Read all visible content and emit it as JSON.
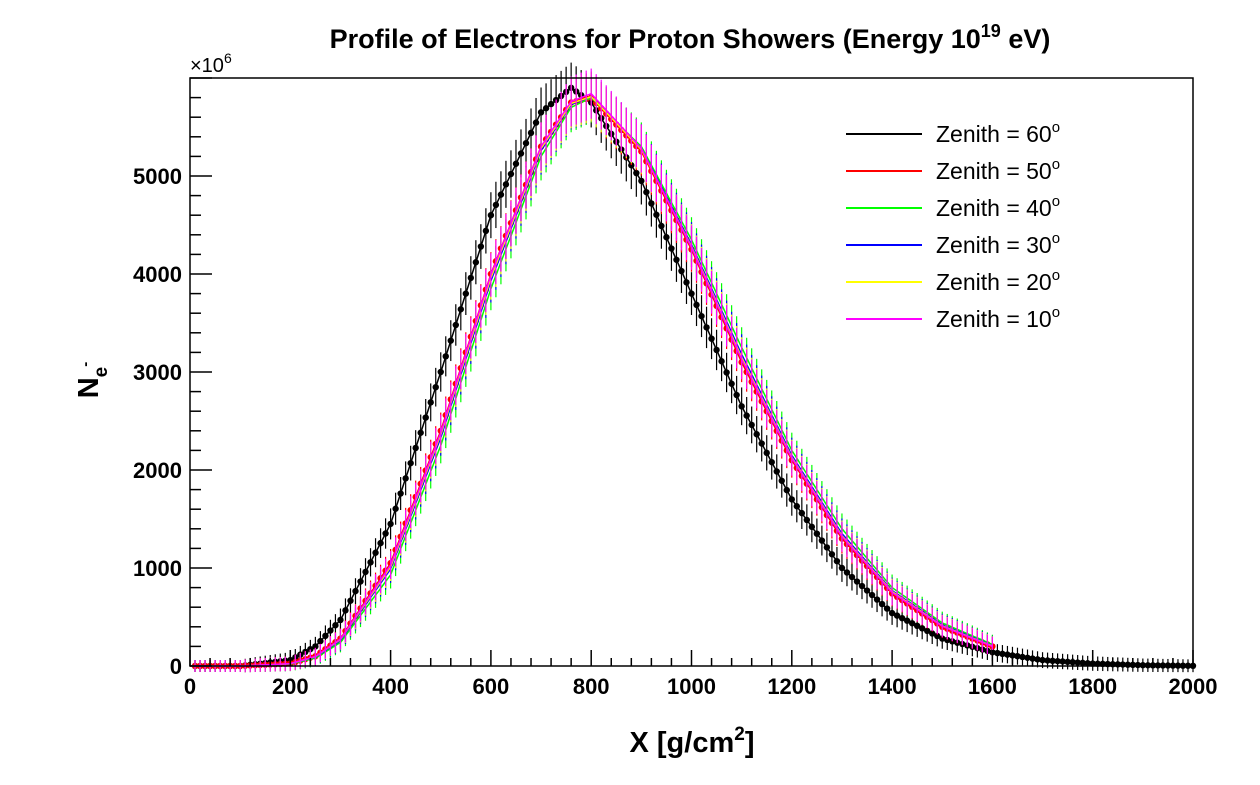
{
  "chart_data": {
    "type": "line",
    "title": "Profile of Electrons for Proton Showers (Energy 10",
    "title_exp": "19",
    "title_suffix": " eV)",
    "xlabel": "X [g/cm",
    "xlabel_exp": "2",
    "xlabel_suffix": "]",
    "ylabel": "N",
    "ylabel_sub": "e",
    "ylabel_sup": "-",
    "y_multiplier": "×10",
    "y_multiplier_exp": "6",
    "xlim": [
      0,
      2000
    ],
    "ylim": [
      0,
      6000
    ],
    "x_ticks": [
      "0",
      "200",
      "400",
      "600",
      "800",
      "1000",
      "1200",
      "1400",
      "1600",
      "1800",
      "2000"
    ],
    "y_ticks": [
      "0",
      "1000",
      "2000",
      "3000",
      "4000",
      "5000"
    ],
    "legend_position": "top-right",
    "x": [
      0,
      100,
      200,
      250,
      300,
      400,
      500,
      600,
      700,
      760,
      800,
      900,
      1000,
      1100,
      1200,
      1300,
      1400,
      1500,
      1600,
      1700,
      1800,
      1900,
      2000
    ],
    "series": [
      {
        "name": "Zenith = 60",
        "name_sup": "o",
        "color": "#000000",
        "markers": true,
        "x_max": 2000,
        "values": [
          0,
          0,
          60,
          200,
          470,
          1450,
          3000,
          4600,
          5650,
          5900,
          5750,
          4950,
          3800,
          2650,
          1700,
          1000,
          540,
          280,
          140,
          60,
          25,
          8,
          2
        ]
      },
      {
        "name": "Zenith = 50",
        "name_sup": "o",
        "color": "#ff0000",
        "markers": true,
        "x_max": 1600,
        "values": [
          0,
          0,
          25,
          100,
          280,
          1050,
          2400,
          4000,
          5300,
          5750,
          5800,
          5250,
          4250,
          3100,
          2100,
          1300,
          740,
          400,
          200,
          0,
          0,
          0,
          0
        ]
      },
      {
        "name": "Zenith = 40",
        "name_sup": "o",
        "color": "#00ff00",
        "markers": false,
        "x_max": 1600,
        "values": [
          0,
          0,
          20,
          80,
          240,
          930,
          2250,
          3850,
          5200,
          5700,
          5800,
          5300,
          4350,
          3250,
          2200,
          1400,
          800,
          440,
          220,
          0,
          0,
          0,
          0
        ]
      },
      {
        "name": "Zenith = 30",
        "name_sup": "o",
        "color": "#0000ff",
        "markers": false,
        "x_max": 1600,
        "values": [
          0,
          0,
          22,
          90,
          260,
          990,
          2330,
          3930,
          5260,
          5730,
          5810,
          5280,
          4300,
          3180,
          2150,
          1350,
          770,
          420,
          210,
          0,
          0,
          0,
          0
        ]
      },
      {
        "name": "Zenith = 20",
        "name_sup": "o",
        "color": "#ffff00",
        "markers": false,
        "x_max": 1600,
        "values": [
          0,
          0,
          23,
          95,
          270,
          1010,
          2360,
          3960,
          5280,
          5740,
          5810,
          5270,
          4280,
          3150,
          2130,
          1330,
          760,
          410,
          205,
          0,
          0,
          0,
          0
        ]
      },
      {
        "name": "Zenith = 10",
        "name_sup": "o",
        "color": "#ff00ff",
        "markers": false,
        "x_max": 1600,
        "values": [
          0,
          0,
          24,
          98,
          275,
          1030,
          2380,
          3990,
          5300,
          5760,
          5840,
          5280,
          4270,
          3130,
          2120,
          1320,
          750,
          405,
          200,
          0,
          0,
          0,
          0
        ]
      }
    ]
  }
}
